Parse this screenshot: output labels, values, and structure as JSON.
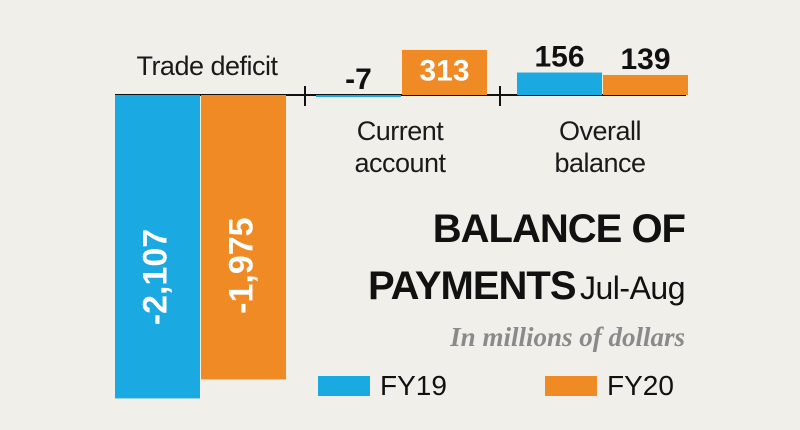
{
  "chart_data": {
    "type": "bar",
    "title": "BALANCE OF PAYMENTS",
    "subtitle": "Jul-Aug",
    "annotation": "In millions of dollars",
    "categories": [
      "Trade deficit",
      "Current account",
      "Overall balance"
    ],
    "series": [
      {
        "name": "FY19",
        "color": "#1ba9e1",
        "values": [
          -2107,
          -7,
          156
        ],
        "value_labels": [
          "-2,107",
          "-7",
          "156"
        ]
      },
      {
        "name": "FY20",
        "color": "#f08a24",
        "values": [
          -1975,
          313,
          139
        ],
        "value_labels": [
          "-1,975",
          "313",
          "139"
        ]
      }
    ]
  }
}
